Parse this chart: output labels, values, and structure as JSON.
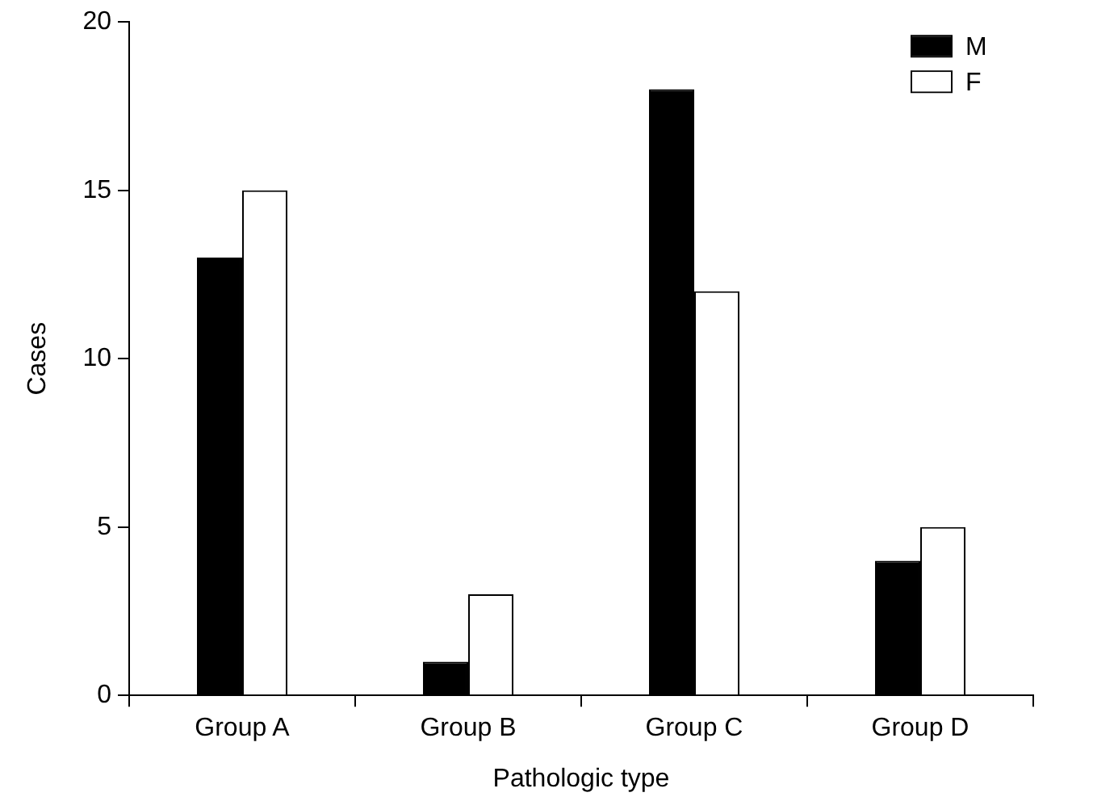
{
  "chart_data": {
    "type": "bar",
    "xlabel": "Pathologic type",
    "ylabel": "Cases",
    "categories": [
      "Group A",
      "Group B",
      "Group C",
      "Group D"
    ],
    "series": [
      {
        "name": "M",
        "color": "#000000",
        "values": [
          13,
          1,
          18,
          4
        ]
      },
      {
        "name": "F",
        "color": "#ffffff",
        "values": [
          15,
          3,
          12,
          5
        ]
      }
    ],
    "ylim": [
      0,
      20
    ],
    "yticks": [
      0,
      5,
      10,
      15,
      20
    ],
    "grid": false,
    "legend": "top right"
  }
}
